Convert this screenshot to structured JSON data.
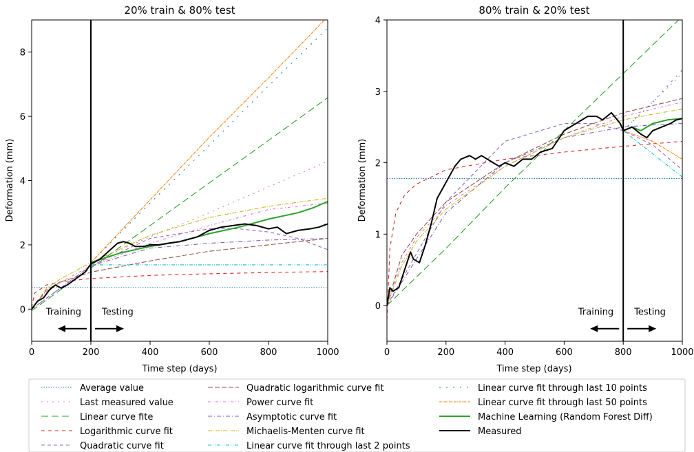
{
  "chart_data": [
    {
      "type": "line",
      "title": "20% train & 80% test",
      "xlabel": "Time step (days)",
      "ylabel": "Deformation (mm)",
      "xlim": [
        0,
        1000
      ],
      "ylim": [
        -1,
        9
      ],
      "xticks": [
        "0",
        "200",
        "400",
        "600",
        "800",
        "1000"
      ],
      "yticks": [
        "0",
        "2",
        "4",
        "6",
        "8"
      ],
      "split_x": 200,
      "annotations": {
        "left": "Training",
        "right": "Testing"
      },
      "series": [
        {
          "key": "average",
          "x": [
            0,
            1000
          ],
          "y": [
            0.67,
            0.67
          ]
        },
        {
          "key": "last_value",
          "x": [
            200,
            400,
            600,
            800,
            1000
          ],
          "y": [
            1.45,
            2.25,
            3.0,
            3.8,
            4.6
          ]
        },
        {
          "key": "linear",
          "x": [
            0,
            200,
            400,
            600,
            800,
            1000
          ],
          "y": [
            -0.05,
            1.28,
            2.6,
            3.93,
            5.25,
            6.58
          ]
        },
        {
          "key": "log",
          "x": [
            0,
            10,
            50,
            100,
            200,
            400,
            600,
            800,
            1000
          ],
          "y": [
            0.05,
            0.5,
            0.75,
            0.85,
            0.95,
            1.05,
            1.1,
            1.14,
            1.17
          ]
        },
        {
          "key": "quadratic",
          "x": [
            0,
            200,
            400,
            600,
            700,
            800,
            900,
            1000
          ],
          "y": [
            0.0,
            1.35,
            2.2,
            2.5,
            2.5,
            2.4,
            2.2,
            1.85
          ]
        },
        {
          "key": "quad_log",
          "x": [
            0,
            50,
            100,
            200,
            400,
            600,
            800,
            1000
          ],
          "y": [
            0.0,
            0.6,
            0.85,
            1.15,
            1.5,
            1.8,
            2.0,
            2.2
          ]
        },
        {
          "key": "power",
          "x": [
            0,
            50,
            100,
            200,
            400,
            600,
            800,
            1000
          ],
          "y": [
            0.0,
            0.55,
            0.85,
            1.35,
            2.05,
            2.6,
            3.1,
            3.3
          ]
        },
        {
          "key": "asymptotic",
          "x": [
            0,
            200,
            400,
            600,
            800,
            1000
          ],
          "y": [
            0.0,
            1.35,
            1.9,
            2.05,
            2.15,
            2.2
          ]
        },
        {
          "key": "michaelis",
          "x": [
            0,
            50,
            100,
            200,
            400,
            600,
            800,
            1000
          ],
          "y": [
            0.0,
            0.65,
            0.95,
            1.45,
            2.3,
            2.85,
            3.2,
            3.45
          ]
        },
        {
          "key": "last2",
          "x": [
            200,
            1000
          ],
          "y": [
            1.38,
            1.38
          ]
        },
        {
          "key": "last10",
          "x": [
            200,
            400,
            600,
            800,
            1000
          ],
          "y": [
            1.45,
            3.3,
            5.1,
            6.95,
            8.75
          ]
        },
        {
          "key": "last50",
          "x": [
            200,
            400,
            600,
            800,
            1000
          ],
          "y": [
            1.45,
            3.4,
            5.35,
            7.2,
            9.1
          ]
        },
        {
          "key": "ml",
          "x": [
            200,
            300,
            400,
            500,
            600,
            700,
            800,
            900,
            950,
            1000
          ],
          "y": [
            1.45,
            1.75,
            1.95,
            2.1,
            2.35,
            2.55,
            2.8,
            3.0,
            3.15,
            3.35
          ]
        },
        {
          "key": "measured",
          "x": [
            0,
            20,
            40,
            60,
            80,
            100,
            120,
            150,
            180,
            200,
            230,
            260,
            290,
            310,
            330,
            350,
            380,
            400,
            430,
            460,
            500,
            540,
            560,
            600,
            640,
            680,
            720,
            760,
            800,
            830,
            860,
            900,
            940,
            970,
            1000
          ],
          "y": [
            0.0,
            0.25,
            0.35,
            0.6,
            0.75,
            0.65,
            0.75,
            0.95,
            1.15,
            1.4,
            1.55,
            1.8,
            2.05,
            2.1,
            2.05,
            1.95,
            1.95,
            2.0,
            2.0,
            2.05,
            2.1,
            2.2,
            2.25,
            2.45,
            2.55,
            2.6,
            2.65,
            2.6,
            2.5,
            2.55,
            2.35,
            2.45,
            2.5,
            2.55,
            2.65
          ]
        }
      ]
    },
    {
      "type": "line",
      "title": "80% train & 20% test",
      "xlabel": "Time step (days)",
      "ylabel": "Deformation (mm)",
      "xlim": [
        0,
        1000
      ],
      "ylim": [
        -0.5,
        4
      ],
      "xticks": [
        "0",
        "200",
        "400",
        "600",
        "800",
        "1000"
      ],
      "yticks": [
        "0",
        "1",
        "2",
        "3",
        "4"
      ],
      "split_x": 800,
      "annotations": {
        "left": "Training",
        "right": "Testing"
      },
      "series": [
        {
          "key": "average",
          "x": [
            0,
            1000
          ],
          "y": [
            1.78,
            1.78
          ]
        },
        {
          "key": "last_value",
          "x": [
            800,
            900,
            1000
          ],
          "y": [
            2.45,
            2.85,
            3.25
          ]
        },
        {
          "key": "linear",
          "x": [
            0,
            200,
            400,
            600,
            800,
            1000
          ],
          "y": [
            0.0,
            0.8,
            1.65,
            2.45,
            3.25,
            4.05
          ]
        },
        {
          "key": "log",
          "x": [
            0,
            10,
            30,
            60,
            100,
            200,
            400,
            600,
            800,
            1000
          ],
          "y": [
            -0.2,
            0.8,
            1.3,
            1.55,
            1.7,
            1.9,
            2.05,
            2.15,
            2.23,
            2.3
          ]
        },
        {
          "key": "quadratic",
          "x": [
            0,
            200,
            400,
            600,
            700,
            800,
            900,
            1000
          ],
          "y": [
            0.0,
            1.45,
            2.3,
            2.55,
            2.55,
            2.45,
            2.25,
            1.9
          ]
        },
        {
          "key": "quad_log",
          "x": [
            0,
            50,
            100,
            200,
            400,
            600,
            800,
            900,
            1000
          ],
          "y": [
            0.0,
            0.7,
            1.0,
            1.45,
            2.0,
            2.4,
            2.7,
            2.8,
            2.9
          ]
        },
        {
          "key": "power",
          "x": [
            0,
            50,
            100,
            200,
            400,
            600,
            800,
            900,
            1000
          ],
          "y": [
            0.0,
            0.6,
            0.95,
            1.4,
            1.95,
            2.35,
            2.65,
            2.75,
            2.85
          ]
        },
        {
          "key": "asymptotic",
          "x": [
            0,
            200,
            400,
            600,
            800,
            900,
            1000
          ],
          "y": [
            0.0,
            1.3,
            2.0,
            2.35,
            2.5,
            2.53,
            2.55
          ]
        },
        {
          "key": "michaelis",
          "x": [
            0,
            50,
            100,
            200,
            400,
            600,
            800,
            900,
            1000
          ],
          "y": [
            0.0,
            0.55,
            0.9,
            1.35,
            1.95,
            2.35,
            2.6,
            2.68,
            2.75
          ]
        },
        {
          "key": "last2",
          "x": [
            800,
            1000
          ],
          "y": [
            2.45,
            1.8
          ]
        },
        {
          "key": "last10",
          "x": [
            800,
            900,
            1000
          ],
          "y": [
            2.45,
            2.85,
            3.3
          ]
        },
        {
          "key": "last50",
          "x": [
            800,
            900,
            1000
          ],
          "y": [
            2.45,
            2.3,
            2.05
          ]
        },
        {
          "key": "ml",
          "x": [
            800,
            830,
            860,
            900,
            950,
            1000
          ],
          "y": [
            2.45,
            2.5,
            2.45,
            2.55,
            2.6,
            2.62
          ]
        },
        {
          "key": "measured",
          "x": [
            0,
            10,
            20,
            40,
            60,
            80,
            90,
            110,
            130,
            150,
            170,
            190,
            210,
            230,
            250,
            280,
            300,
            320,
            340,
            360,
            380,
            400,
            430,
            460,
            490,
            520,
            560,
            600,
            640,
            680,
            710,
            730,
            760,
            790,
            800,
            830,
            860,
            880,
            900,
            930,
            960,
            980,
            1000
          ],
          "y": [
            0.0,
            0.25,
            0.2,
            0.25,
            0.5,
            0.75,
            0.65,
            0.6,
            0.85,
            1.15,
            1.5,
            1.65,
            1.8,
            1.95,
            2.05,
            2.1,
            2.05,
            2.1,
            2.05,
            2.0,
            1.95,
            2.0,
            1.95,
            2.05,
            2.05,
            2.15,
            2.2,
            2.45,
            2.55,
            2.65,
            2.65,
            2.6,
            2.7,
            2.55,
            2.45,
            2.5,
            2.4,
            2.35,
            2.45,
            2.5,
            2.55,
            2.6,
            2.62
          ]
        }
      ]
    }
  ],
  "legend": {
    "columns": [
      [
        {
          "key": "average",
          "label": "Average value"
        },
        {
          "key": "last_value",
          "label": "Last measured value"
        },
        {
          "key": "linear",
          "label": "Linear curve fite"
        },
        {
          "key": "log",
          "label": "Logarithmic curve fit"
        },
        {
          "key": "quadratic",
          "label": "Quadratic curve fit"
        }
      ],
      [
        {
          "key": "quad_log",
          "label": "Quadratic logarithmic curve fit"
        },
        {
          "key": "power",
          "label": "Power curve fit"
        },
        {
          "key": "asymptotic",
          "label": "Asymptotic curve fit"
        },
        {
          "key": "michaelis",
          "label": "Michaelis-Menten curve fit"
        },
        {
          "key": "last2",
          "label": "Linear curve fit through last 2 points"
        }
      ],
      [
        {
          "key": "last10",
          "label": "Linear curve fit through last 10 points"
        },
        {
          "key": "last50",
          "label": "Linear curve fit through last 50 points"
        },
        {
          "key": "ml",
          "label": "Machine Learning (Random Forest Diff)"
        },
        {
          "key": "measured",
          "label": "Measured"
        }
      ]
    ]
  },
  "styles": {
    "average": {
      "color": "#1f77b4",
      "dash": "1.5,2"
    },
    "last_value": {
      "color": "#e377c2",
      "dash": "2,6"
    },
    "linear": {
      "color": "#2ca02c",
      "dash": "10,5"
    },
    "log": {
      "color": "#d62728",
      "dash": "5,5"
    },
    "quadratic": {
      "color": "#9467bd",
      "dash": "5,4"
    },
    "quad_log": {
      "color": "#8c564b",
      "dash": "7,3"
    },
    "power": {
      "color": "#e377c2",
      "dash": "4,3,1,3"
    },
    "asymptotic": {
      "color": "#7f5fb0",
      "dash": "6,3,1,3"
    },
    "michaelis": {
      "color": "#bcbd22",
      "dash": "6,2,1,2"
    },
    "last2": {
      "color": "#17becf",
      "dash": "5,2,1,2,1,2"
    },
    "last10": {
      "color": "#1f77b4",
      "dash": "2,8"
    },
    "last50": {
      "color": "#ff7f0e",
      "dash": "4,1,1,1"
    },
    "ml": {
      "color": "#2ca02c",
      "dash": ""
    },
    "measured": {
      "color": "#000000",
      "dash": ""
    }
  }
}
